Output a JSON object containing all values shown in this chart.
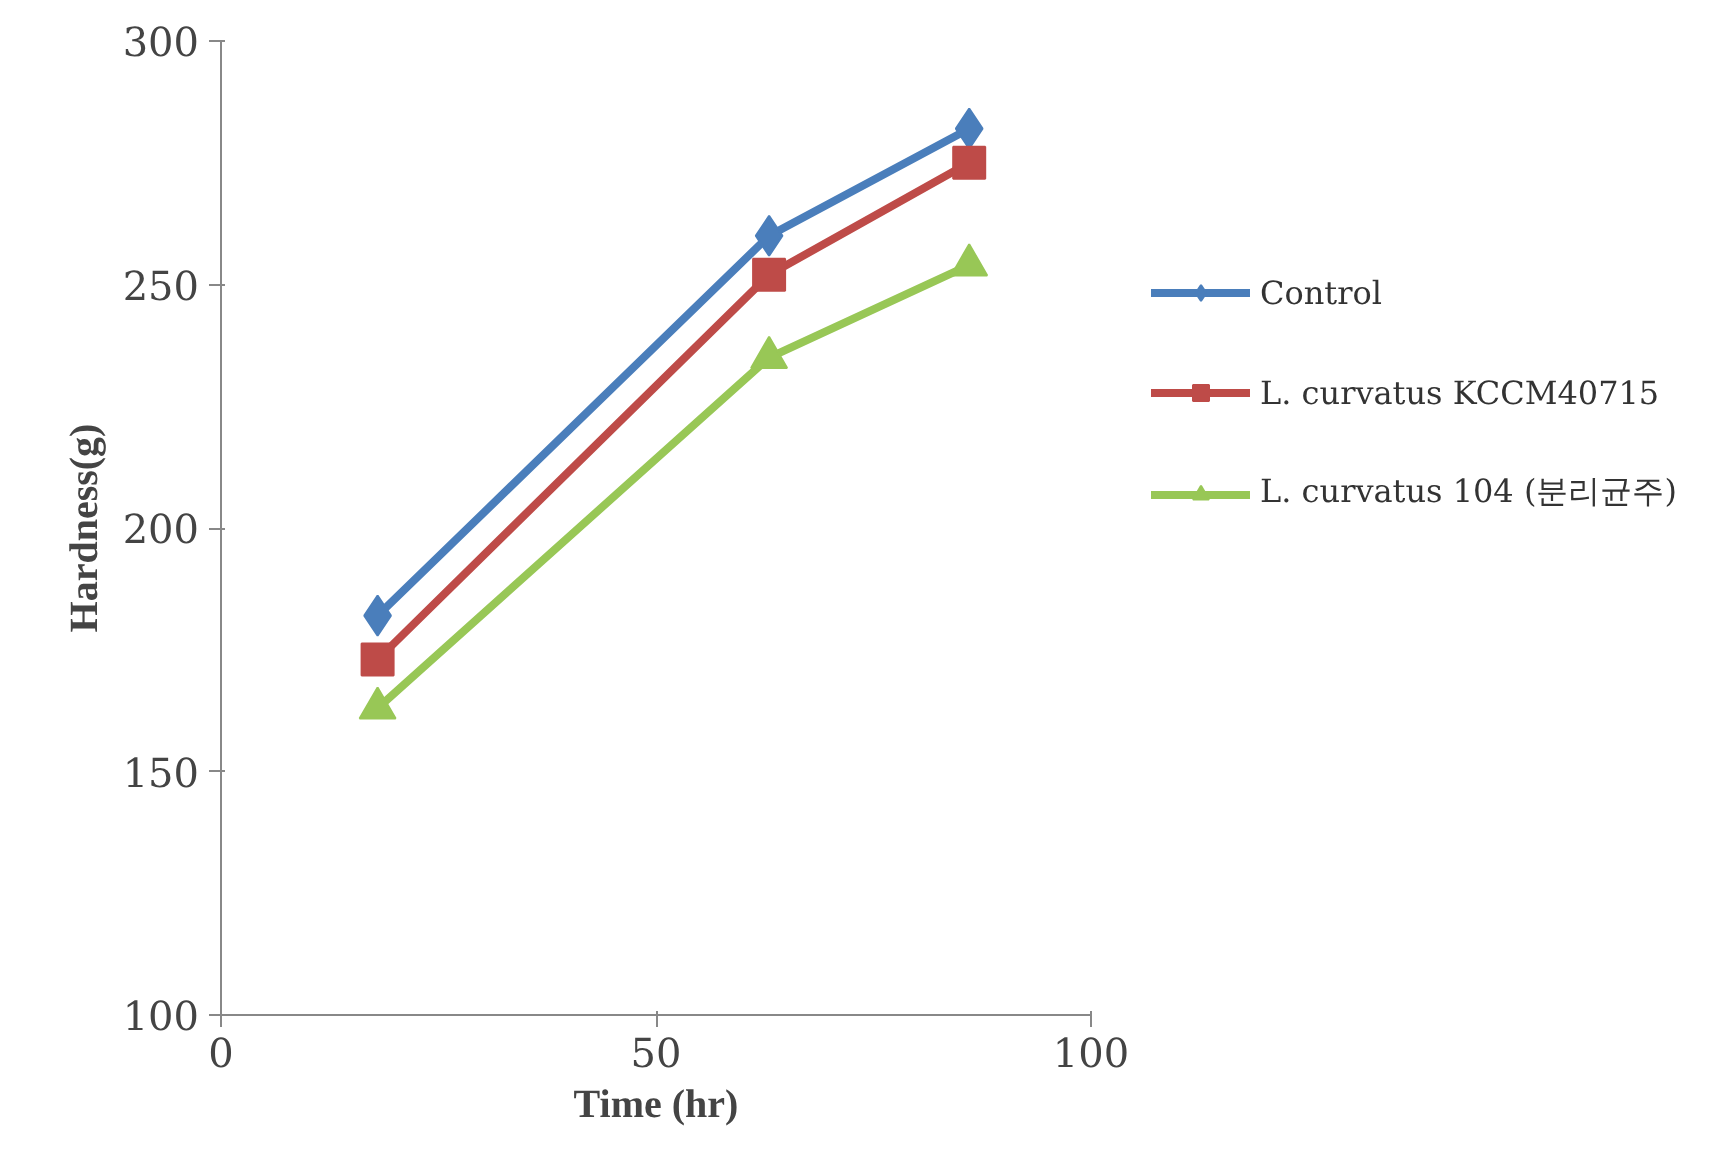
{
  "chart_data": {
    "type": "line",
    "xlabel": "Time (hr)",
    "ylabel": "Hardness(g)",
    "xlim": [
      0,
      100
    ],
    "xticks": [
      0,
      50,
      100
    ],
    "ylim": [
      100,
      300
    ],
    "yticks": [
      100,
      150,
      200,
      250,
      300
    ],
    "grid": false,
    "legend": "right",
    "series": [
      {
        "name": "Control",
        "color": "#4a7ebb",
        "marker": "diamond",
        "x": [
          18,
          63,
          86
        ],
        "values": [
          182,
          260,
          282
        ]
      },
      {
        "name": "L. curvatus KCCM40715",
        "color": "#be4b48",
        "marker": "square",
        "x": [
          18,
          63,
          86
        ],
        "values": [
          173,
          252,
          275
        ]
      },
      {
        "name": "L. curvatus 104 (분리균주)",
        "color": "#98c756",
        "marker": "triangle",
        "x": [
          18,
          63,
          86
        ],
        "values": [
          163,
          235,
          254
        ]
      }
    ]
  }
}
